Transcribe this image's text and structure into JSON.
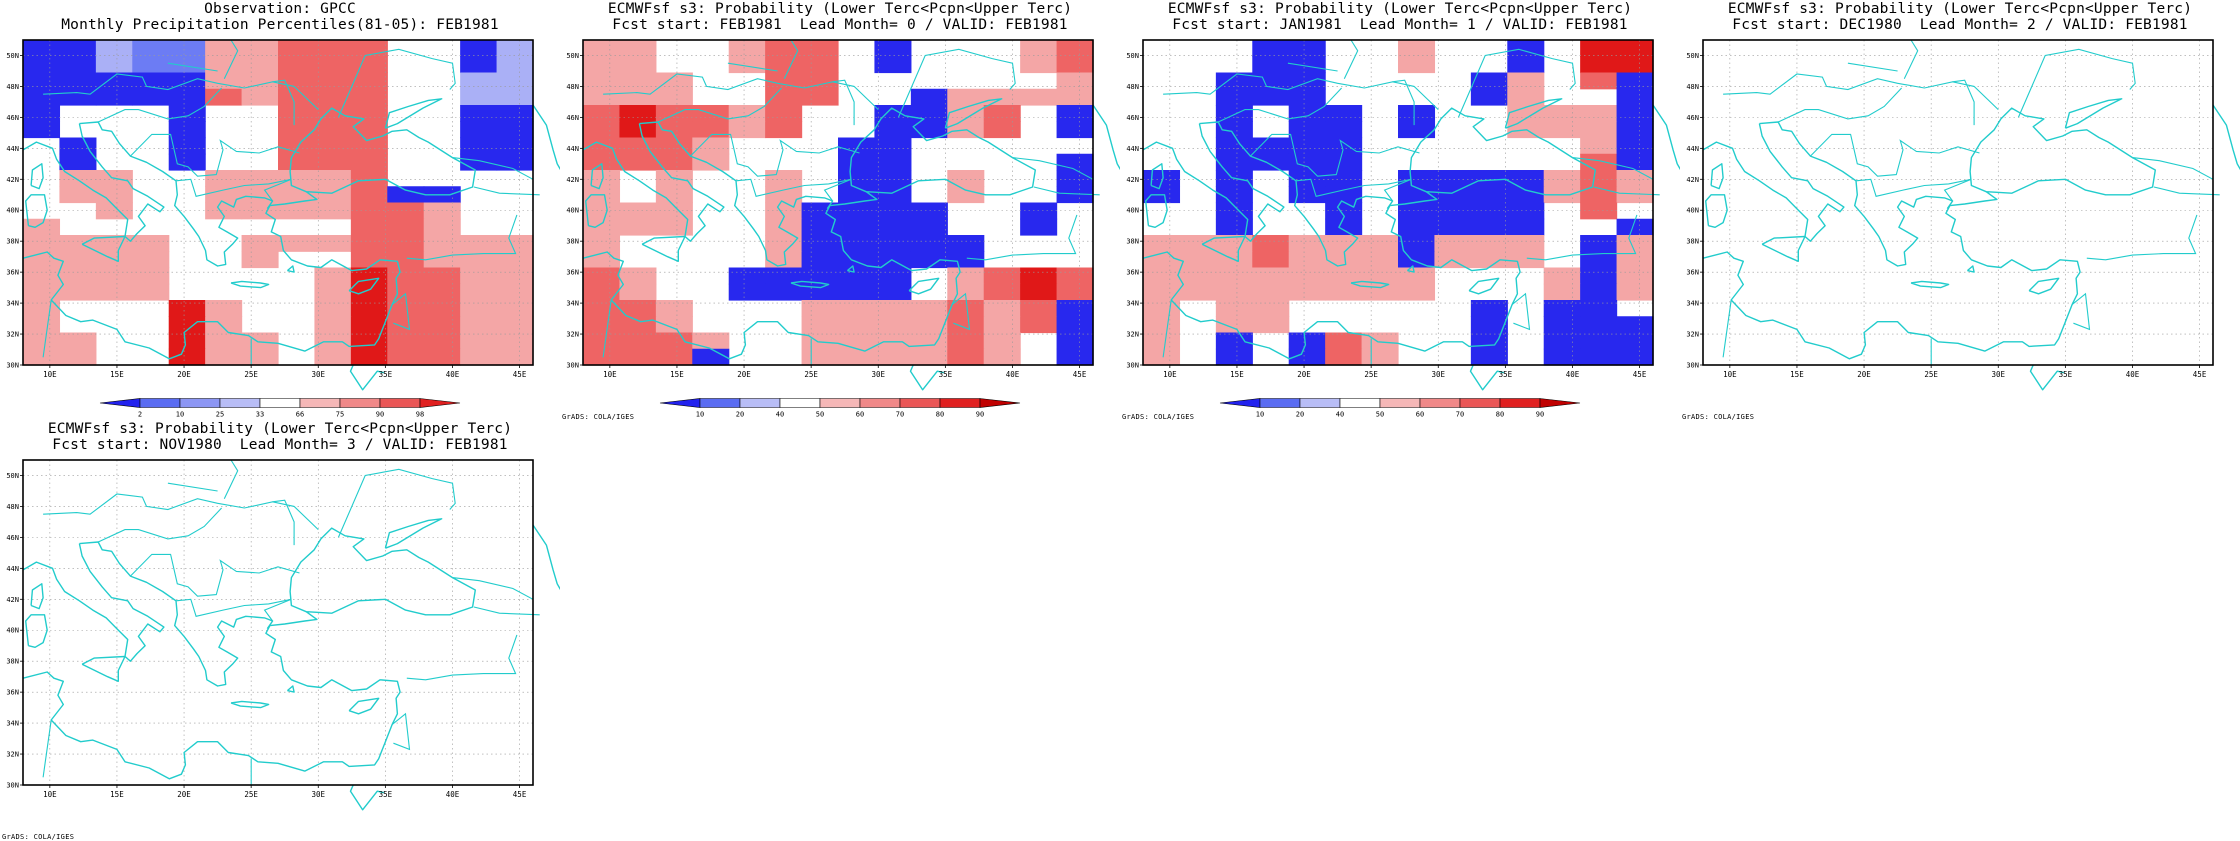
{
  "panels": [
    {
      "id": "obs",
      "title_line1": "Observation: GPCC",
      "title_line2": "Monthly Precipitation Percentiles(81-05): FEB1981",
      "credit": "",
      "lon_ticks": [
        "10E",
        "15E",
        "20E",
        "25E",
        "30E",
        "35E",
        "40E",
        "45E"
      ],
      "lat_ticks": [
        "30N",
        "32N",
        "34N",
        "36N",
        "38N",
        "40N",
        "42N",
        "44N",
        "46N",
        "48N",
        "50N"
      ],
      "colorbar": {
        "labels": [
          "2",
          "10",
          "25",
          "33",
          "66",
          "75",
          "90",
          "98"
        ],
        "colors": [
          "#2222ee",
          "#5a6cf2",
          "#8c96f4",
          "#b8bdf6",
          "#ffffff",
          "#f5b7b7",
          "#f08888",
          "#ea5656",
          "#e02020"
        ]
      },
      "grid": [
        "BBACCSSHHHWWBA",
        "BBACCSSHHHWWBA",
        "BBBBBSSHHHWWAA",
        "BBBBBHSHHHWWAA",
        "BWWWBWWHHHWWBB",
        "BWWWBWWHHHWWBB",
        "WBWWBWWHHHWWBB",
        "WBWWBWWHHHWWBB",
        "WSSWWSSSSHWWWW",
        "WSSWWSSSSHBBWW",
        "WWSWWSSSSHHSWW",
        "SWWWWWWWWHHSWW",
        "SSSSWWSSSHHSSS",
        "SSSSWWSWWHHSSS",
        "SSSSWWWWSVHHSS",
        "SSSSWWWWSVHHSS",
        "SWWWVSWWSVHHSS",
        "SWWWVSWWSVHHSS",
        "SSWWVSSWSVHHSS",
        "SSWWVSSWSVHHSS"
      ]
    },
    {
      "id": "lead0",
      "title_line1": "ECMWFsf s3: Probability (Lower Terc<Pcpn<Upper Terc)",
      "title_line2": "Fcst start: FEB1981  Lead Month= 0 / VALID: FEB1981",
      "credit": "GrADS: COLA/IGES",
      "lon_ticks": [
        "10E",
        "15E",
        "20E",
        "25E",
        "30E",
        "35E",
        "40E",
        "45E"
      ],
      "lat_ticks": [
        "30N",
        "32N",
        "34N",
        "36N",
        "38N",
        "40N",
        "42N",
        "44N",
        "46N",
        "48N",
        "50N"
      ],
      "colorbar": {
        "labels": [
          "10",
          "20",
          "40",
          "50",
          "60",
          "70",
          "80",
          "90"
        ],
        "colors": [
          "#2222ee",
          "#5a6cf2",
          "#b8bdf6",
          "#ffffff",
          "#f5b7b7",
          "#f08888",
          "#ea5656",
          "#e02020",
          "#c00000"
        ]
      },
      "grid": [
        "SSWWSHHWBWWWSH",
        "SSWWSHHWBWWWSH",
        "SSSWWHHWWWWWWS",
        "SSSWWHHWWBSSSS",
        "HVHHSHWWBBSHWB",
        "HVHHSHWWBBSHWB",
        "HHHSWWWBBWWWWW",
        "HHHSWWWBBWWWWB",
        "SWSWWSWBBWSWWB",
        "SWSWWSWBBWSWWB",
        "SSSWWSBBBBWWBW",
        "SSSWWSBBBBWWBW",
        "SWWWWSBBBBBWWW",
        "SWWWWSBBBBBWWW",
        "HSWWBBBBBWSHVH",
        "HSWWBBBBBWSHVH",
        "HHSWWWSSSSHSHB",
        "HHSWWWSSSSHSHB",
        "HHHSWWSSSSHSWB",
        "HHHBWWSSSSHSWB"
      ]
    },
    {
      "id": "lead1",
      "title_line1": "ECMWFsf s3: Probability (Lower Terc<Pcpn<Upper Terc)",
      "title_line2": "Fcst start: JAN1981  Lead Month= 1 / VALID: FEB1981",
      "credit": "GrADS: COLA/IGES",
      "lon_ticks": [
        "10E",
        "15E",
        "20E",
        "25E",
        "30E",
        "35E",
        "40E",
        "45E"
      ],
      "lat_ticks": [
        "30N",
        "32N",
        "34N",
        "36N",
        "38N",
        "40N",
        "42N",
        "44N",
        "46N",
        "48N",
        "50N"
      ],
      "colorbar": {
        "labels": [
          "10",
          "20",
          "40",
          "50",
          "60",
          "70",
          "80",
          "90"
        ],
        "colors": [
          "#2222ee",
          "#5a6cf2",
          "#b8bdf6",
          "#ffffff",
          "#f5b7b7",
          "#f08888",
          "#ea5656",
          "#e02020",
          "#c00000"
        ]
      },
      "grid": [
        "WWWBBWWSWWBWVV",
        "WWWBBWWSWWBWVV",
        "WWBBBWWWWBSWHB",
        "WWBBBWWWWBSWWB",
        "WWBWBBWBWWSSSB",
        "WWBWBBWBWWSSSB",
        "WWBBBBWWWWWWSB",
        "WWBBBBWWWWWWHB",
        "BWBWBBWBBBBSHS",
        "BWBWBBWBBBBSHS",
        "WWBWWBWBBBBWHW",
        "WWBWWBWBBBBWWB",
        "SSSHSSSBSSSWBS",
        "SSSHSSSBSSSWBS",
        "SSSSSSSSWWWSBS",
        "SSSSSSSSWWWSBS",
        "SWSSWWWWWBWBBW",
        "SWSSWWWWWBWBBB",
        "SWBWBHSWWBWBBB",
        "SWBWBHSWWBWBBB"
      ]
    },
    {
      "id": "lead2",
      "title_line1": "ECMWFsf s3: Probability (Lower Terc<Pcpn<Upper Terc)",
      "title_line2": "Fcst start: DEC1980  Lead Month= 2 / VALID: FEB1981",
      "credit": "GrADS: COLA/IGES",
      "lon_ticks": [
        "10E",
        "15E",
        "20E",
        "25E",
        "30E",
        "35E",
        "40E",
        "45E"
      ],
      "lat_ticks": [
        "30N",
        "32N",
        "34N",
        "36N",
        "38N",
        "40N",
        "42N",
        "44N",
        "46N",
        "48N",
        "50N"
      ],
      "colorbar": null,
      "grid": []
    },
    {
      "id": "lead3",
      "title_line1": "ECMWFsf s3: Probability (Lower Terc<Pcpn<Upper Terc)",
      "title_line2": "Fcst start: NOV1980  Lead Month= 3 / VALID: FEB1981",
      "credit": "GrADS: COLA/IGES",
      "lon_ticks": [
        "10E",
        "15E",
        "20E",
        "25E",
        "30E",
        "35E",
        "40E",
        "45E"
      ],
      "lat_ticks": [
        "30N",
        "32N",
        "34N",
        "36N",
        "38N",
        "40N",
        "42N",
        "44N",
        "46N",
        "48N",
        "50N"
      ],
      "colorbar": null,
      "grid": []
    }
  ],
  "cell_colors": {
    "W": "#ffffff",
    "A": "#aab0f6",
    "B": "#2828ee",
    "C": "#6c7cf4",
    "S": "#f4a6a6",
    "H": "#ee6464",
    "V": "#e01818"
  },
  "coastline_color": "#22cccc",
  "map_extent": {
    "lon": [
      8,
      46
    ],
    "lat": [
      30,
      51
    ]
  }
}
